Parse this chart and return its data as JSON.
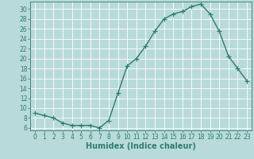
{
  "x": [
    0,
    1,
    2,
    3,
    4,
    5,
    6,
    7,
    8,
    9,
    10,
    11,
    12,
    13,
    14,
    15,
    16,
    17,
    18,
    19,
    20,
    21,
    22,
    23
  ],
  "y": [
    9,
    8.5,
    8,
    7,
    6.5,
    6.5,
    6.5,
    6,
    7.5,
    13,
    18.5,
    20,
    22.5,
    25.5,
    28,
    29,
    29.5,
    30.5,
    31,
    29,
    25.5,
    20.5,
    18,
    15.5
  ],
  "line_color": "#2e7d6e",
  "bg_color": "#b8dada",
  "grid_color": "#ffffff",
  "xlabel": "Humidex (Indice chaleur)",
  "ylim_min": 5.5,
  "ylim_max": 31.5,
  "xlim_min": -0.5,
  "xlim_max": 23.5,
  "yticks": [
    6,
    8,
    10,
    12,
    14,
    16,
    18,
    20,
    22,
    24,
    26,
    28,
    30
  ],
  "xticks": [
    0,
    1,
    2,
    3,
    4,
    5,
    6,
    7,
    8,
    9,
    10,
    11,
    12,
    13,
    14,
    15,
    16,
    17,
    18,
    19,
    20,
    21,
    22,
    23
  ],
  "marker": "+",
  "marker_size": 4,
  "line_width": 1.0,
  "xlabel_fontsize": 7,
  "tick_fontsize": 5.5
}
